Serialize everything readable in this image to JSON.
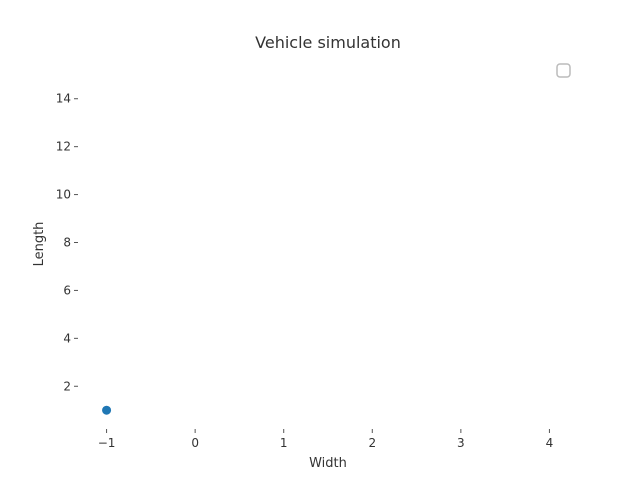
{
  "chart_data": {
    "type": "scatter",
    "title": "Vehicle simulation",
    "xlabel": "Width",
    "ylabel": "Length",
    "xlim": [
      -1.3,
      4.3
    ],
    "ylim": [
      0.3,
      15.7
    ],
    "x_ticks": [
      -1,
      0,
      1,
      2,
      3,
      4
    ],
    "x_tick_labels": [
      "−1",
      "0",
      "1",
      "2",
      "3",
      "4"
    ],
    "y_ticks": [
      2,
      4,
      6,
      8,
      10,
      12,
      14
    ],
    "y_tick_labels": [
      "2",
      "4",
      "6",
      "8",
      "10",
      "12",
      "14"
    ],
    "grid": false,
    "legend": {
      "location": "top-right",
      "entries": []
    },
    "series": [
      {
        "color": "#1f77b4",
        "x": [
          -1
        ],
        "y": [
          1
        ]
      }
    ]
  }
}
